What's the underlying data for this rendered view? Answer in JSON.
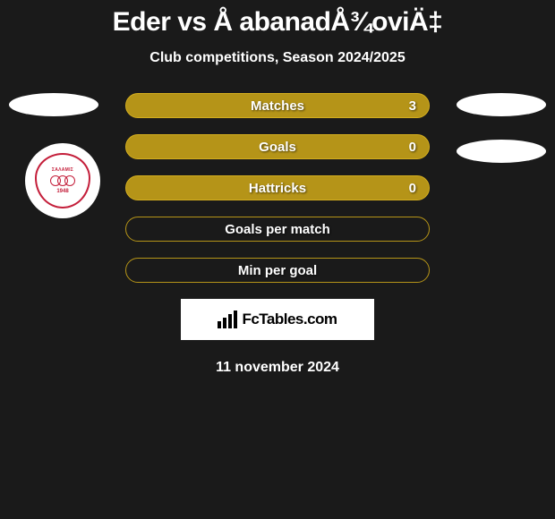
{
  "title": "Eder vs Å abanadÅ¾oviÄ‡",
  "subtitle": "Club competitions, Season 2024/2025",
  "stats": [
    {
      "label": "Matches",
      "value": "3",
      "filled": true,
      "show_value": true
    },
    {
      "label": "Goals",
      "value": "0",
      "filled": true,
      "show_value": true
    },
    {
      "label": "Hattricks",
      "value": "0",
      "filled": true,
      "show_value": true
    },
    {
      "label": "Goals per match",
      "value": "",
      "filled": false,
      "show_value": false
    },
    {
      "label": "Min per goal",
      "value": "",
      "filled": false,
      "show_value": false
    }
  ],
  "side_ellipses": {
    "left_top_offset": 0,
    "right_rows": [
      0,
      1
    ]
  },
  "club_badge": {
    "top_text": "ΣΑΛΑΜΙΣ",
    "year": "1948",
    "border_color": "#c41e3a"
  },
  "branding": {
    "text": "FcTables.com",
    "icon_color": "#000000",
    "background": "#ffffff"
  },
  "date": "11 november 2024",
  "colors": {
    "background": "#1a1a1a",
    "pill_fill": "#b59418",
    "pill_border": "#d4ae1f",
    "text_white": "#ffffff",
    "ellipse_bg": "#ffffff"
  }
}
